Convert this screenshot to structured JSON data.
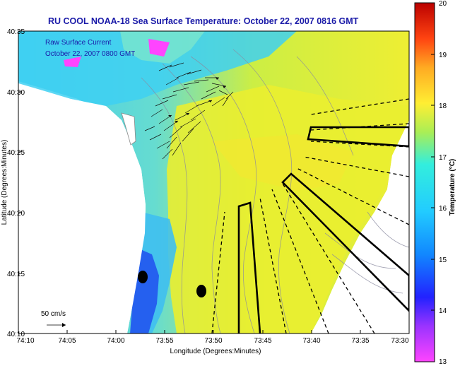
{
  "title": "RU COOL  NOAA-18  Sea Surface Temperature:  October 22, 2007 0816 GMT",
  "overlay": {
    "line1": "Raw Surface Current",
    "line2": "October 22, 2007 0800 GMT"
  },
  "scale_label": "50 cm/s",
  "x_axis": {
    "label": "Longitude (Degrees:Minutes)",
    "ticks": [
      "74:10",
      "74:05",
      "74:00",
      "73:55",
      "73:50",
      "73:45",
      "73:40",
      "73:35",
      "73:30"
    ]
  },
  "y_axis": {
    "label": "Latitude (Degrees:Minutes)",
    "ticks": [
      "40:10",
      "40:15",
      "40:20",
      "40:25",
      "40:30",
      "40:35"
    ]
  },
  "colorbar": {
    "title": "Temperature (°C)",
    "ticks": [
      "13",
      "14",
      "15",
      "16",
      "17",
      "18",
      "19",
      "20"
    ],
    "min": 13,
    "max": 20,
    "stops": [
      "#ff44ff",
      "#2222ff",
      "#22bbff",
      "#33eedd",
      "#aaee55",
      "#ffee33",
      "#ffaa22",
      "#ff3311",
      "#cc0000"
    ]
  },
  "colors": {
    "title_text": "#1a1aa8",
    "land": "#ffffff",
    "warm_water": "#e8ee30",
    "cool_water": "#33ccf0",
    "cold_water": "#1e55e8"
  },
  "markers": [
    "station-marker",
    "station-marker"
  ]
}
